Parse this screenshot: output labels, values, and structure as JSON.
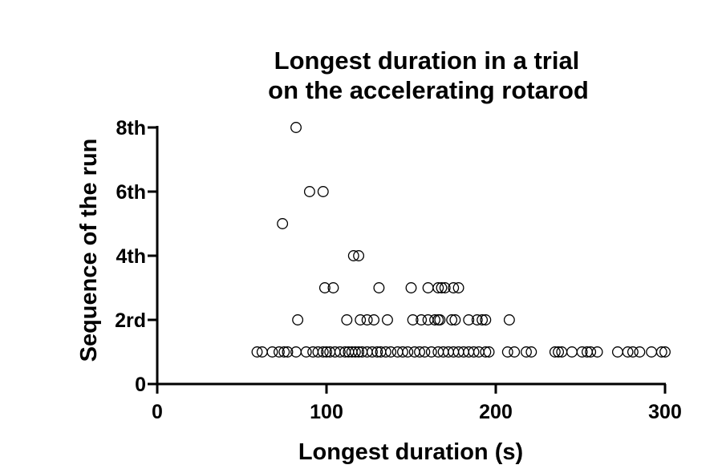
{
  "chart_data": {
    "type": "scatter",
    "title": [
      "Longest duration in a trial",
      "on the accelerating rotarod"
    ],
    "xlabel": "Longest duration (s)",
    "ylabel": "Sequence of the run",
    "xlim": [
      0,
      300
    ],
    "ylim": [
      0,
      8
    ],
    "x_ticks": [
      {
        "value": 0,
        "label": "0"
      },
      {
        "value": 100,
        "label": "100"
      },
      {
        "value": 200,
        "label": "200"
      },
      {
        "value": 300,
        "label": "300"
      }
    ],
    "y_ticks": [
      {
        "value": 0,
        "label": "0"
      },
      {
        "value": 2,
        "label": "2rd"
      },
      {
        "value": 4,
        "label": "4th"
      },
      {
        "value": 6,
        "label": "6th"
      },
      {
        "value": 8,
        "label": "8th"
      }
    ],
    "grid": false,
    "marker": "open-circle",
    "points": [
      {
        "x": 82,
        "y": 8
      },
      {
        "x": 90,
        "y": 6
      },
      {
        "x": 98,
        "y": 6
      },
      {
        "x": 74,
        "y": 5
      },
      {
        "x": 116,
        "y": 4
      },
      {
        "x": 119,
        "y": 4
      },
      {
        "x": 99,
        "y": 3
      },
      {
        "x": 104,
        "y": 3
      },
      {
        "x": 131,
        "y": 3
      },
      {
        "x": 150,
        "y": 3
      },
      {
        "x": 160,
        "y": 3
      },
      {
        "x": 166,
        "y": 3
      },
      {
        "x": 168,
        "y": 3
      },
      {
        "x": 170,
        "y": 3
      },
      {
        "x": 175,
        "y": 3
      },
      {
        "x": 178,
        "y": 3
      },
      {
        "x": 83,
        "y": 2
      },
      {
        "x": 112,
        "y": 2
      },
      {
        "x": 120,
        "y": 2
      },
      {
        "x": 124,
        "y": 2
      },
      {
        "x": 128,
        "y": 2
      },
      {
        "x": 136,
        "y": 2
      },
      {
        "x": 151,
        "y": 2
      },
      {
        "x": 156,
        "y": 2
      },
      {
        "x": 160,
        "y": 2
      },
      {
        "x": 164,
        "y": 2
      },
      {
        "x": 166,
        "y": 2
      },
      {
        "x": 167,
        "y": 2
      },
      {
        "x": 174,
        "y": 2
      },
      {
        "x": 176,
        "y": 2
      },
      {
        "x": 184,
        "y": 2
      },
      {
        "x": 189,
        "y": 2
      },
      {
        "x": 192,
        "y": 2
      },
      {
        "x": 194,
        "y": 2
      },
      {
        "x": 208,
        "y": 2
      },
      {
        "x": 59,
        "y": 1
      },
      {
        "x": 62,
        "y": 1
      },
      {
        "x": 68,
        "y": 1
      },
      {
        "x": 72,
        "y": 1
      },
      {
        "x": 75,
        "y": 1
      },
      {
        "x": 77,
        "y": 1
      },
      {
        "x": 82,
        "y": 1
      },
      {
        "x": 88,
        "y": 1
      },
      {
        "x": 92,
        "y": 1
      },
      {
        "x": 95,
        "y": 1
      },
      {
        "x": 98,
        "y": 1
      },
      {
        "x": 100,
        "y": 1
      },
      {
        "x": 102,
        "y": 1
      },
      {
        "x": 105,
        "y": 1
      },
      {
        "x": 108,
        "y": 1
      },
      {
        "x": 111,
        "y": 1
      },
      {
        "x": 113,
        "y": 1
      },
      {
        "x": 115,
        "y": 1
      },
      {
        "x": 117,
        "y": 1
      },
      {
        "x": 119,
        "y": 1
      },
      {
        "x": 121,
        "y": 1
      },
      {
        "x": 124,
        "y": 1
      },
      {
        "x": 127,
        "y": 1
      },
      {
        "x": 130,
        "y": 1
      },
      {
        "x": 132,
        "y": 1
      },
      {
        "x": 135,
        "y": 1
      },
      {
        "x": 138,
        "y": 1
      },
      {
        "x": 142,
        "y": 1
      },
      {
        "x": 145,
        "y": 1
      },
      {
        "x": 148,
        "y": 1
      },
      {
        "x": 152,
        "y": 1
      },
      {
        "x": 155,
        "y": 1
      },
      {
        "x": 158,
        "y": 1
      },
      {
        "x": 162,
        "y": 1
      },
      {
        "x": 166,
        "y": 1
      },
      {
        "x": 169,
        "y": 1
      },
      {
        "x": 172,
        "y": 1
      },
      {
        "x": 175,
        "y": 1
      },
      {
        "x": 178,
        "y": 1
      },
      {
        "x": 181,
        "y": 1
      },
      {
        "x": 184,
        "y": 1
      },
      {
        "x": 187,
        "y": 1
      },
      {
        "x": 190,
        "y": 1
      },
      {
        "x": 194,
        "y": 1
      },
      {
        "x": 196,
        "y": 1
      },
      {
        "x": 207,
        "y": 1
      },
      {
        "x": 211,
        "y": 1
      },
      {
        "x": 218,
        "y": 1
      },
      {
        "x": 221,
        "y": 1
      },
      {
        "x": 235,
        "y": 1
      },
      {
        "x": 237,
        "y": 1
      },
      {
        "x": 239,
        "y": 1
      },
      {
        "x": 245,
        "y": 1
      },
      {
        "x": 251,
        "y": 1
      },
      {
        "x": 254,
        "y": 1
      },
      {
        "x": 256,
        "y": 1
      },
      {
        "x": 260,
        "y": 1
      },
      {
        "x": 272,
        "y": 1
      },
      {
        "x": 278,
        "y": 1
      },
      {
        "x": 281,
        "y": 1
      },
      {
        "x": 285,
        "y": 1
      },
      {
        "x": 292,
        "y": 1
      },
      {
        "x": 298,
        "y": 1
      },
      {
        "x": 300,
        "y": 1
      }
    ]
  }
}
